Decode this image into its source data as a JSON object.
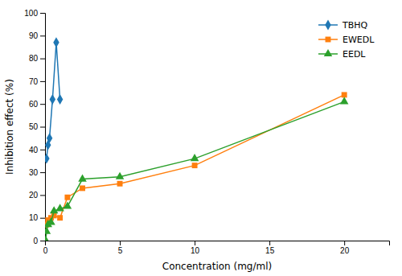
{
  "chart_data": {
    "type": "line",
    "xlabel": "Concentration (mg/ml)",
    "ylabel": "Inhibition effect (%)",
    "series": [
      {
        "name": "TBHQ",
        "marker": "diamond",
        "x": [
          0.1,
          0.2,
          0.3,
          0.5,
          0.75,
          1.0
        ],
        "values": [
          36,
          42,
          45,
          62,
          87,
          62
        ]
      },
      {
        "name": "EWEDL",
        "marker": "square",
        "x": [
          0.1,
          0.2,
          0.4,
          0.6,
          1.0,
          1.5,
          2.5,
          5.0,
          10.0,
          20.0
        ],
        "values": [
          7,
          9,
          10,
          11,
          10,
          19,
          23,
          25,
          33,
          64
        ]
      },
      {
        "name": "EEDL",
        "marker": "triangle",
        "x": [
          0.05,
          0.1,
          0.2,
          0.4,
          0.6,
          1.0,
          1.5,
          2.5,
          5.0,
          10.0,
          20.0
        ],
        "values": [
          0,
          4,
          7,
          8,
          13,
          14,
          15,
          27,
          28,
          36,
          61
        ]
      }
    ],
    "xlim": [
      0,
      23
    ],
    "ylim": [
      0,
      100
    ],
    "xticks": [
      0,
      5,
      10,
      15,
      20
    ],
    "yticks": [
      0,
      10,
      20,
      30,
      40,
      50,
      60,
      70,
      80,
      90,
      100
    ],
    "grid": false,
    "legend": "upper right"
  }
}
